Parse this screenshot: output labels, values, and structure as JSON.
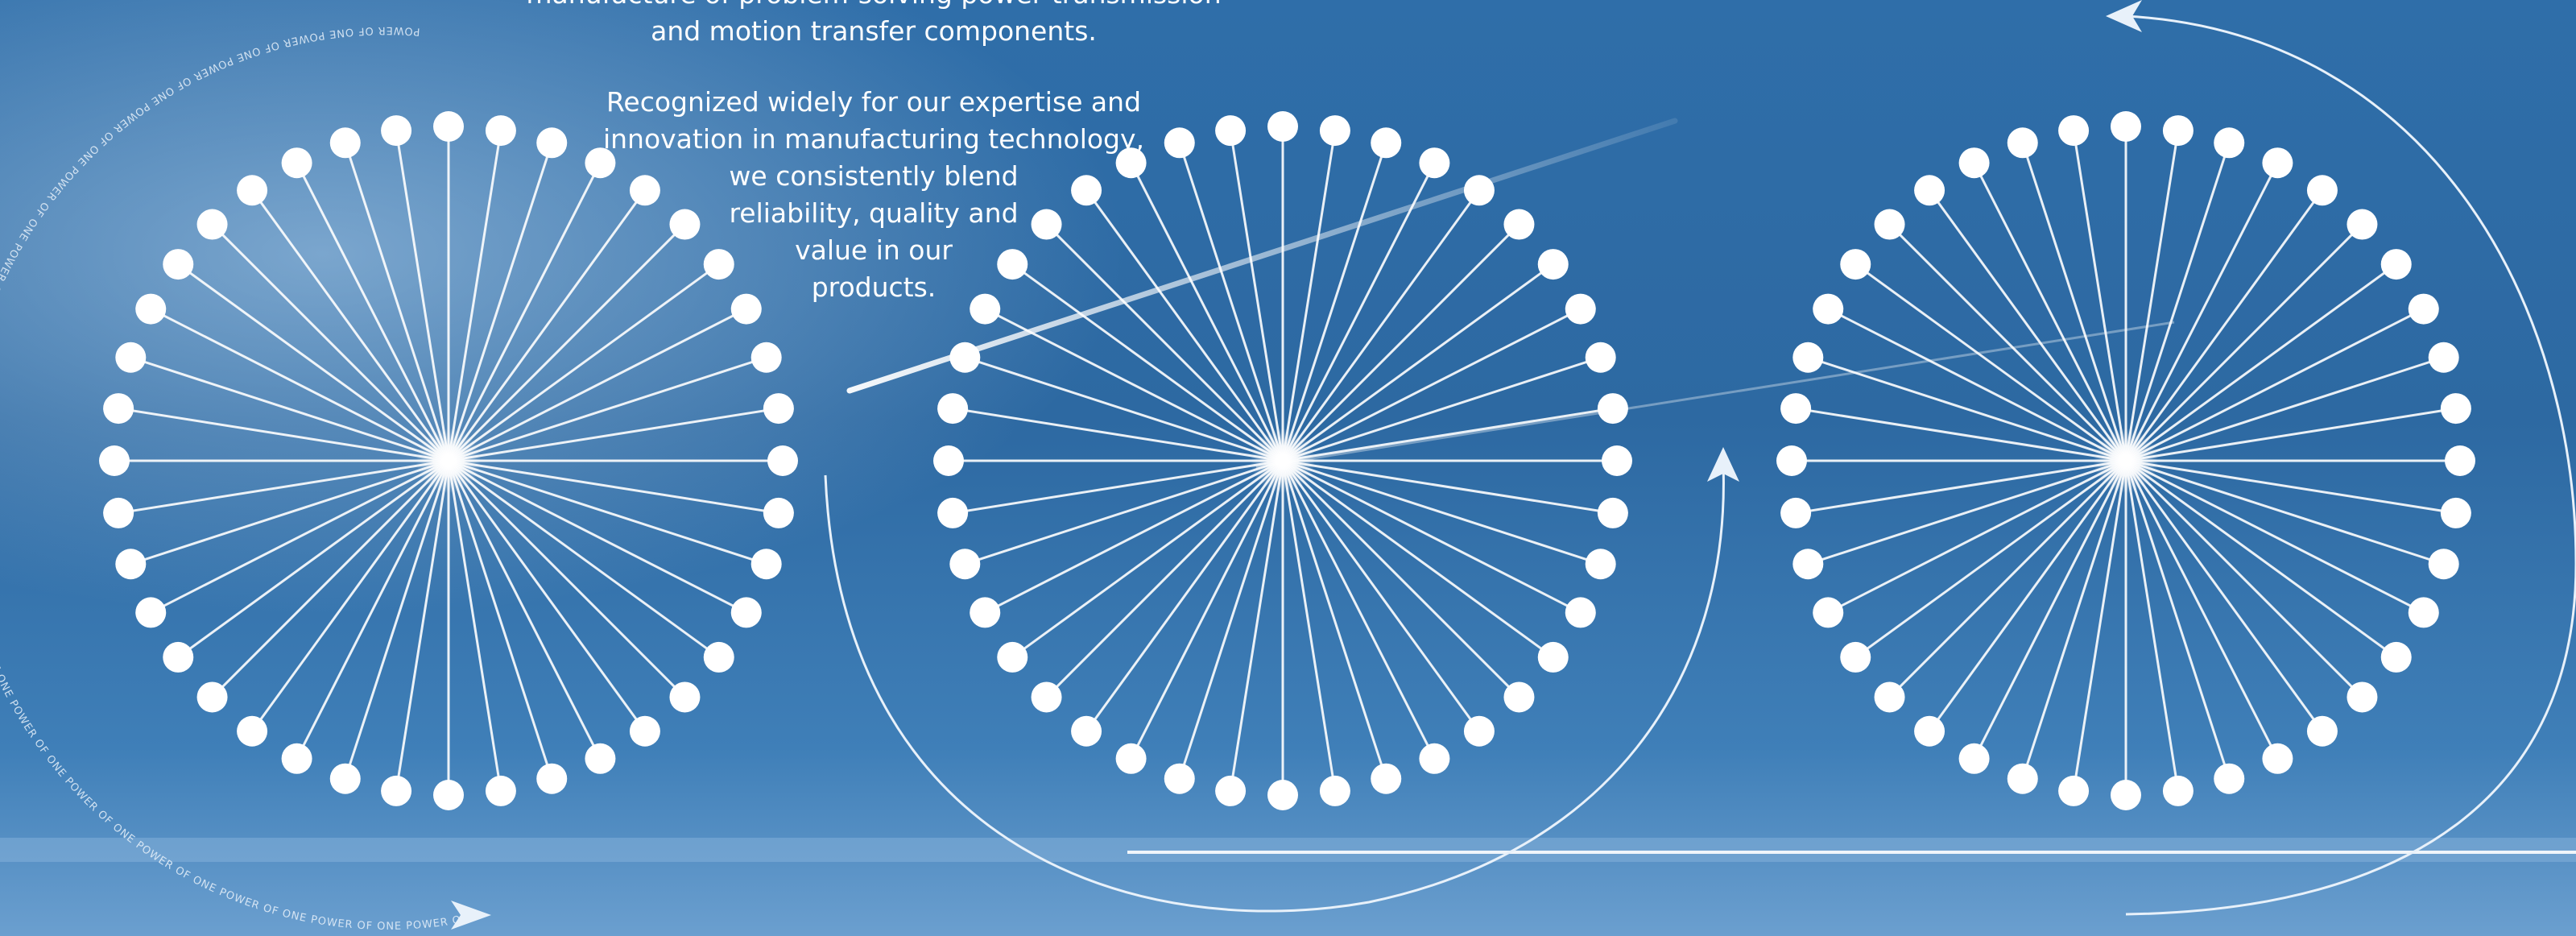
{
  "text": {
    "lead_line_1": "manufacture of problem-solving power transmission",
    "lead_line_2": "and motion transfer components.",
    "body_lines": [
      "Recognized widely for our expertise and",
      "innovation in manufacturing technology,",
      "we consistently blend",
      "reliability, quality and",
      "value in our",
      "products."
    ],
    "arc_text": "POWER OF ONE POWER OF ONE POWER OF ONE POWER OF ONE POWER OF ONE POWER OF ONE POWER OF ONE POWER OF ONE POWER OF ONE POWER OF ONE POWER OF ONE POWER OF ONE POWER OF ONE POWER OF ONE POWER OF ONE POWER OF ONE POWER OF ONE POWER OF ONE"
  },
  "graphic": {
    "wheel_count": 3,
    "spokes_per_wheel": 40
  },
  "colors": {
    "sky_dark": "#1d5b93",
    "sky_mid": "#3a7ab5",
    "sky_light": "#9fc4e6",
    "white": "#ffffff"
  }
}
